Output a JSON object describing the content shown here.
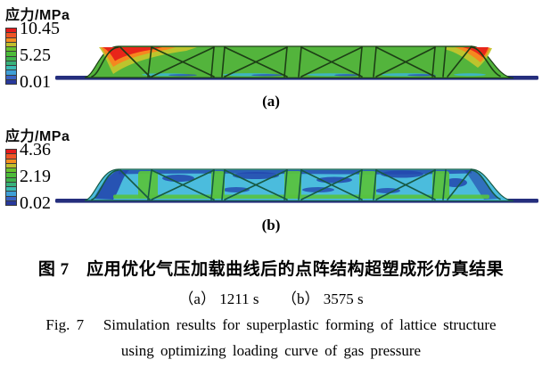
{
  "colors": {
    "ramp": [
      "#e31b1c",
      "#ef5426",
      "#f68c1f",
      "#c0bd2c",
      "#67c22c",
      "#4cbb39",
      "#3eb44b",
      "#37b17a",
      "#3cbcb4",
      "#3f9fd6",
      "#3a63c3",
      "#28399d"
    ],
    "baseline": "#252e7d",
    "panel_a": {
      "body": "#53b43c",
      "hot_yellow": "#c3c52c",
      "hot_orange": "#f6871f",
      "hot_red": "#e8261a",
      "cool_cyan": "#3cb4d8",
      "cool_blue": "#2b52b5",
      "lattice": "#1d3f16"
    },
    "panel_b": {
      "body": "#4bbcdd",
      "patch_blue": "#2347ae",
      "strip_green": "#58c23f",
      "lattice": "#175a44"
    }
  },
  "panels": [
    {
      "label": "(a)",
      "legend": {
        "title": "应力/MPa",
        "max": "10.45",
        "mid": "5.25",
        "min": "0.01"
      }
    },
    {
      "label": "(b)",
      "legend": {
        "title": "应力/MPa",
        "max": "4.36",
        "mid": "2.19",
        "min": "0.02"
      }
    }
  ],
  "captions": {
    "cn": "图 7　应用优化气压加载曲线后的点阵结构超塑成形仿真结果",
    "sub": "（a） 1211 s　　（b） 3575 s",
    "en1": "Fig. 7   Simulation results for superplastic forming of lattice structure",
    "en2": "using optimizing loading curve of gas pressure"
  }
}
